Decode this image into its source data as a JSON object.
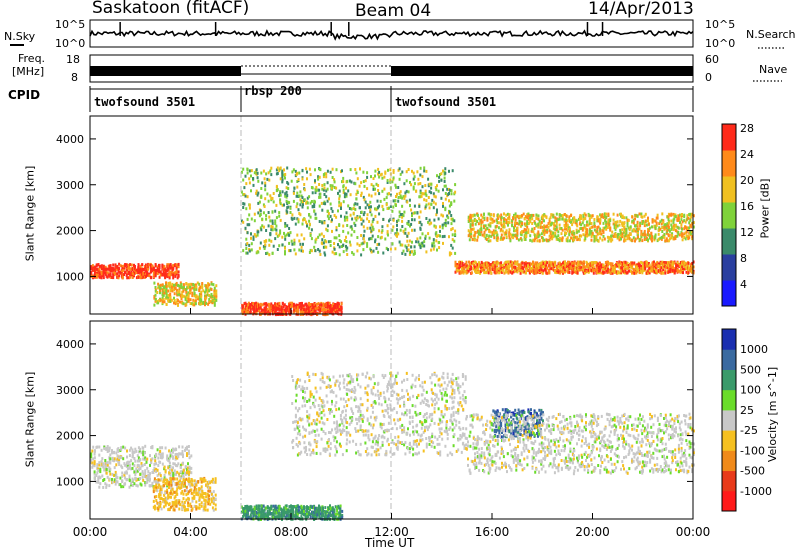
{
  "header": {
    "station": "Saskatoon (fitACF)",
    "beam": "Beam 04",
    "date": "14/Apr/2013"
  },
  "noise_panel": {
    "left_label": "N.Sky",
    "right_label": "N.Search",
    "tick_top": "10^5",
    "tick_bottom": "10^0"
  },
  "freq_panel": {
    "label_line1": "Freq.",
    "label_line2": "[MHz]",
    "left_ticks": [
      "18",
      "8"
    ],
    "right_ticks": [
      "60",
      "0"
    ],
    "right_label": "Nave"
  },
  "cpid_panel": {
    "label": "CPID",
    "segments": [
      {
        "name": "twofsound 3501",
        "start_hour": 0,
        "end_hour": 6
      },
      {
        "name": "rbsp 200",
        "start_hour": 6,
        "end_hour": 12
      },
      {
        "name": "twofsound 3501",
        "start_hour": 12,
        "end_hour": 24
      }
    ]
  },
  "power_panel": {
    "ylabel": "Slant Range [km]",
    "yticks": [
      "1000",
      "2000",
      "3000",
      "4000"
    ],
    "colorbar_label": "Power [dB]",
    "colorbar_ticks": [
      "4",
      "8",
      "12",
      "16",
      "20",
      "24",
      "28"
    ],
    "colors": [
      "#1a1aff",
      "#2a3f9f",
      "#3a8a6a",
      "#7fd23a",
      "#f0c020",
      "#ff8a1a",
      "#ff2a1a"
    ]
  },
  "velocity_panel": {
    "ylabel": "Slant Range [km]",
    "yticks": [
      "1000",
      "2000",
      "3000",
      "4000"
    ],
    "colorbar_label": "Velocity [m s^-1]",
    "colorbar_ticks": [
      "1000",
      "500",
      "100",
      "25",
      "-25",
      "-100",
      "-500",
      "-1000"
    ],
    "colors": [
      "#1a2fb0",
      "#3a6aa0",
      "#3a9a6a",
      "#6adc2a",
      "#c8c8c8",
      "#f5c020",
      "#f08a1a",
      "#e83a1a",
      "#ff1a1a"
    ]
  },
  "x_axis": {
    "label": "Time UT",
    "ticks": [
      "00:00",
      "04:00",
      "08:00",
      "12:00",
      "16:00",
      "20:00",
      "00:00"
    ]
  },
  "chart_data": [
    {
      "type": "line",
      "title": "N.Sky",
      "x": [
        0,
        24
      ],
      "xlabel": "Time UT",
      "ylim": [
        1,
        100000
      ],
      "scale": "log",
      "note_source": "noise level trace"
    },
    {
      "type": "bar",
      "title": "Freq. [MHz]",
      "ylim": [
        8,
        18
      ],
      "series": [
        {
          "name": "twofsound 3501",
          "x_range": [
            0,
            6
          ]
        },
        {
          "name": "rbsp 200",
          "x_range": [
            6,
            12
          ]
        },
        {
          "name": "twofsound 3501",
          "x_range": [
            12,
            24
          ]
        }
      ]
    },
    {
      "type": "heatmap",
      "title": "Power [dB]",
      "xlabel": "Time UT",
      "ylabel": "Slant Range [km]",
      "xlim": [
        0,
        24
      ],
      "ylim": [
        180,
        4500
      ],
      "zlim": [
        0,
        30
      ],
      "bands": [
        {
          "t": [
            0,
            3.5
          ],
          "range": [
            1000,
            1300
          ],
          "level": "28"
        },
        {
          "t": [
            2.5,
            5
          ],
          "range": [
            400,
            900
          ],
          "level": "20"
        },
        {
          "t": [
            6,
            10
          ],
          "range": [
            200,
            450
          ],
          "level": "28"
        },
        {
          "t": [
            6,
            14.5
          ],
          "range": [
            1500,
            3400
          ],
          "level": "16"
        },
        {
          "t": [
            14.5,
            24
          ],
          "range": [
            1100,
            1350
          ],
          "level": "24"
        },
        {
          "t": [
            15,
            24
          ],
          "range": [
            1800,
            2400
          ],
          "level": "20"
        }
      ]
    },
    {
      "type": "heatmap",
      "title": "Velocity [m s^-1]",
      "xlabel": "Time UT",
      "ylabel": "Slant Range [km]",
      "xlim": [
        0,
        24
      ],
      "ylim": [
        180,
        4500
      ],
      "zlim": [
        -1000,
        1000
      ],
      "bands": [
        {
          "t": [
            0,
            4
          ],
          "range": [
            900,
            1800
          ],
          "level": "25"
        },
        {
          "t": [
            2.5,
            5
          ],
          "range": [
            400,
            1100
          ],
          "level": "-100"
        },
        {
          "t": [
            6,
            10
          ],
          "range": [
            200,
            500
          ],
          "level": "100"
        },
        {
          "t": [
            8,
            15
          ],
          "range": [
            1600,
            3400
          ],
          "level": "25"
        },
        {
          "t": [
            16,
            18
          ],
          "range": [
            2000,
            2600
          ],
          "level": "500"
        },
        {
          "t": [
            15,
            24
          ],
          "range": [
            1200,
            2500
          ],
          "level": "25"
        }
      ]
    }
  ]
}
